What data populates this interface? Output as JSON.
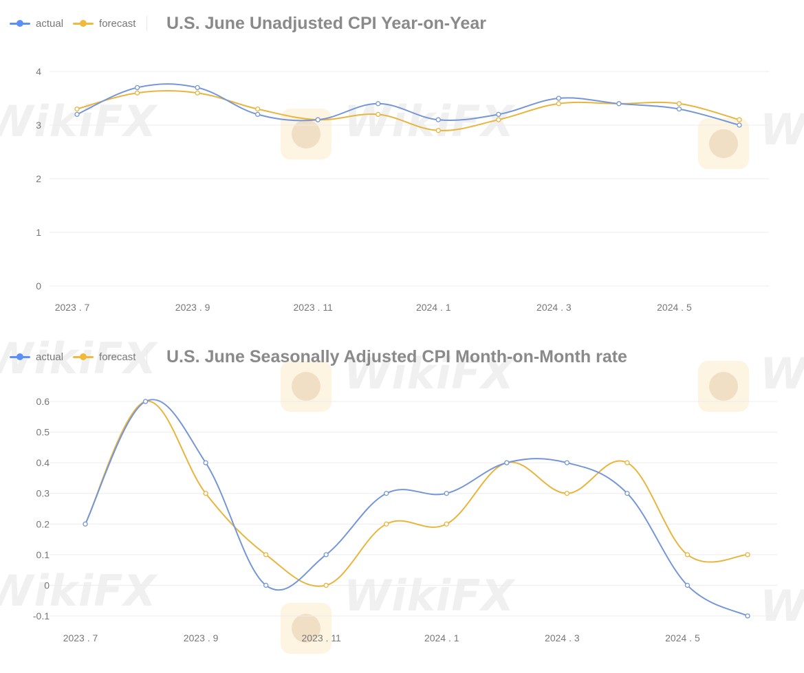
{
  "watermark": "WikiFX",
  "colors": {
    "actual": "#5b8ff9",
    "actual_line": "#7496d8",
    "forecast": "#f0b93b",
    "forecast_line": "#e9b43b"
  },
  "chart_data": [
    {
      "type": "line",
      "title": "U.S. June Unadjusted CPI Year-on-Year",
      "legend": [
        "actual",
        "forecast"
      ],
      "categories": [
        "2023.7",
        "2023.8",
        "2023.9",
        "2023.10",
        "2023.11",
        "2023.12",
        "2024.1",
        "2024.2",
        "2024.3",
        "2024.4",
        "2024.5",
        "2024.6"
      ],
      "x_tick_labels": [
        "2023 . 7",
        "2023 . 9",
        "2023 . 11",
        "2024 . 1",
        "2024 . 3",
        "2024 . 5"
      ],
      "y_ticks": [
        "4",
        "3",
        "2",
        "1",
        "0"
      ],
      "ylim": [
        0,
        4
      ],
      "series": [
        {
          "name": "actual",
          "values": [
            3.2,
            3.7,
            3.7,
            3.2,
            3.1,
            3.4,
            3.1,
            3.2,
            3.5,
            3.4,
            3.3,
            3.0
          ]
        },
        {
          "name": "forecast",
          "values": [
            3.3,
            3.6,
            3.6,
            3.3,
            3.1,
            3.2,
            2.9,
            3.1,
            3.4,
            3.4,
            3.4,
            3.1
          ]
        }
      ]
    },
    {
      "type": "line",
      "title": "U.S. June Seasonally Adjusted CPI Month-on-Month rate",
      "legend": [
        "actual",
        "forecast"
      ],
      "categories": [
        "2023.7",
        "2023.8",
        "2023.9",
        "2023.10",
        "2023.11",
        "2023.12",
        "2024.1",
        "2024.2",
        "2024.3",
        "2024.4",
        "2024.5",
        "2024.6"
      ],
      "x_tick_labels": [
        "2023 . 7",
        "2023 . 9",
        "2023 . 11",
        "2024 . 1",
        "2024 . 3",
        "2024 . 5"
      ],
      "y_ticks": [
        "0.6",
        "0.5",
        "0.4",
        "0.3",
        "0.2",
        "0.1",
        "0",
        "-0.1"
      ],
      "ylim": [
        -0.1,
        0.6
      ],
      "series": [
        {
          "name": "actual",
          "values": [
            0.2,
            0.6,
            0.4,
            0.0,
            0.1,
            0.3,
            0.3,
            0.4,
            0.4,
            0.3,
            0.0,
            -0.1
          ]
        },
        {
          "name": "forecast",
          "values": [
            0.2,
            0.6,
            0.3,
            0.1,
            0.0,
            0.2,
            0.2,
            0.4,
            0.3,
            0.4,
            0.1,
            0.1
          ]
        }
      ]
    }
  ]
}
